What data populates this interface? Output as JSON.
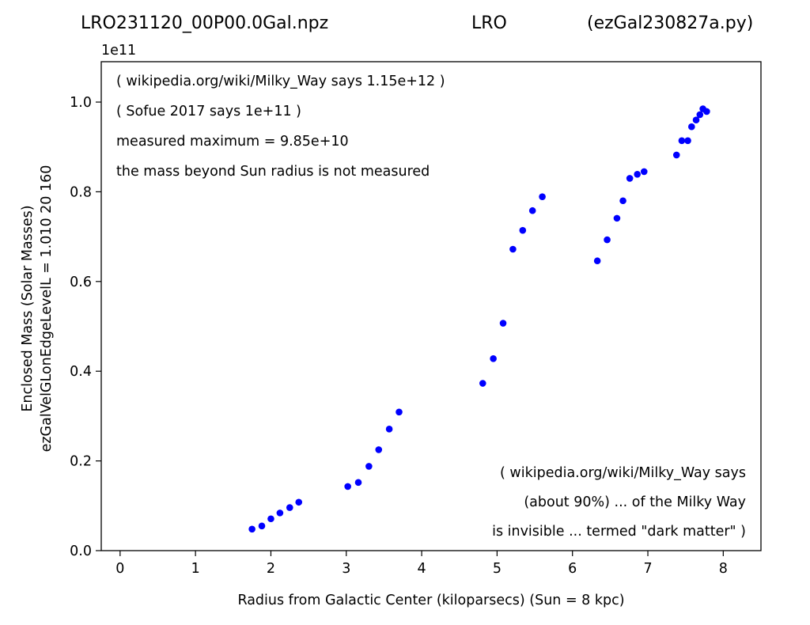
{
  "chart_data": {
    "type": "scatter",
    "title_left": "LRO231120_00P00.0Gal.npz",
    "title_center": "LRO",
    "title_right": "(ezGal230827a.py)",
    "y_offset_label": "1e11",
    "xlabel": "Radius from Galactic Center (kiloparsecs)  (Sun = 8 kpc)",
    "ylabel_line1": "Enclosed Mass (Solar Masses)",
    "ylabel_line2": "ezGalVelGLonEdgeLevelL = 1.010  20  160",
    "xlim": [
      -0.25,
      8.5
    ],
    "ylim": [
      0,
      1.09
    ],
    "x_ticks": [
      0,
      1,
      2,
      3,
      4,
      5,
      6,
      7,
      8
    ],
    "x_tick_labels": [
      "0",
      "1",
      "2",
      "3",
      "4",
      "5",
      "6",
      "7",
      "8"
    ],
    "y_ticks": [
      0,
      0.2,
      0.4,
      0.6,
      0.8,
      1.0
    ],
    "y_tick_labels": [
      "0.0",
      "0.2",
      "0.4",
      "0.6",
      "0.8",
      "1.0"
    ],
    "grid": false,
    "marker_color": "#0000ff",
    "annotations_top_left": [
      "( wikipedia.org/wiki/Milky_Way says 1.15e+12 )",
      "( Sofue 2017 says 1e+11 )",
      "measured maximum = 9.85e+10",
      "the mass beyond Sun radius is not measured"
    ],
    "annotations_bottom_right": [
      "( wikipedia.org/wiki/Milky_Way says",
      "(about 90%) ... of the Milky Way",
      "is invisible ... termed \"dark matter\" )"
    ],
    "points": [
      {
        "x": 1.75,
        "y": 0.048
      },
      {
        "x": 1.88,
        "y": 0.055
      },
      {
        "x": 2.0,
        "y": 0.071
      },
      {
        "x": 2.12,
        "y": 0.084
      },
      {
        "x": 2.25,
        "y": 0.096
      },
      {
        "x": 2.37,
        "y": 0.108
      },
      {
        "x": 3.02,
        "y": 0.143
      },
      {
        "x": 3.16,
        "y": 0.152
      },
      {
        "x": 3.3,
        "y": 0.188
      },
      {
        "x": 3.43,
        "y": 0.225
      },
      {
        "x": 3.57,
        "y": 0.271
      },
      {
        "x": 3.7,
        "y": 0.309
      },
      {
        "x": 4.81,
        "y": 0.373
      },
      {
        "x": 4.95,
        "y": 0.428
      },
      {
        "x": 5.08,
        "y": 0.507
      },
      {
        "x": 5.21,
        "y": 0.672
      },
      {
        "x": 5.34,
        "y": 0.714
      },
      {
        "x": 5.47,
        "y": 0.758
      },
      {
        "x": 5.6,
        "y": 0.789
      },
      {
        "x": 6.33,
        "y": 0.646
      },
      {
        "x": 6.46,
        "y": 0.693
      },
      {
        "x": 6.59,
        "y": 0.741
      },
      {
        "x": 6.67,
        "y": 0.78
      },
      {
        "x": 6.76,
        "y": 0.83
      },
      {
        "x": 6.86,
        "y": 0.839
      },
      {
        "x": 6.95,
        "y": 0.845
      },
      {
        "x": 7.38,
        "y": 0.882
      },
      {
        "x": 7.45,
        "y": 0.914
      },
      {
        "x": 7.53,
        "y": 0.914
      },
      {
        "x": 7.58,
        "y": 0.945
      },
      {
        "x": 7.64,
        "y": 0.96
      },
      {
        "x": 7.69,
        "y": 0.972
      },
      {
        "x": 7.73,
        "y": 0.985
      },
      {
        "x": 7.78,
        "y": 0.979
      }
    ]
  }
}
